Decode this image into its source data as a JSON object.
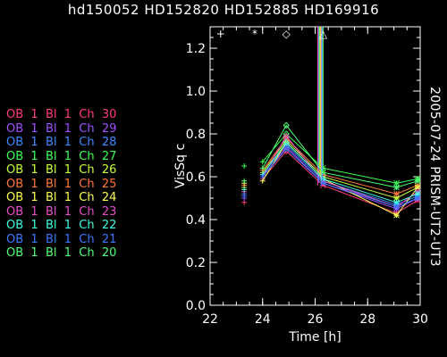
{
  "title": "hd150052 HD152820 HD152885 HD169916",
  "side_label": "2005-07-24 PRISM-UT2-UT3",
  "colors": {
    "background": "#000000",
    "axes": "#ffffff",
    "ch30": "#ff3c78",
    "ch29": "#a050ff",
    "ch28": "#3c8cff",
    "ch27": "#3cff50",
    "ch26": "#c8ff3c",
    "ch25": "#ff783c",
    "ch24": "#ffff50",
    "ch23": "#e650c8",
    "ch22": "#3cffdc",
    "ch21": "#3c78ff",
    "ch20": "#50ff78"
  },
  "chart_data": {
    "type": "line",
    "title": "hd150052 HD152820 HD152885 HD169916",
    "xlabel": "Time [h]",
    "ylabel": "VisSq c",
    "xlim": [
      22,
      30
    ],
    "ylim": [
      0,
      1.3
    ],
    "xticks": [
      22,
      24,
      26,
      28,
      30
    ],
    "yticks": [
      0.0,
      0.2,
      0.4,
      0.6,
      0.8,
      1.0,
      1.2
    ],
    "grid": false,
    "legend_position": "left, outside plot",
    "series": [
      {
        "name": "OB 1 Bl 1 Ch 30",
        "color": "#ff3c78",
        "x": [
          23.3,
          24.0,
          24.9,
          26.3,
          29.1,
          29.9
        ],
        "y": [
          0.48,
          0.59,
          0.72,
          0.56,
          0.43,
          0.49
        ]
      },
      {
        "name": "OB 1 Bl 1 Ch 29",
        "color": "#a050ff",
        "x": [
          23.3,
          24.0,
          24.9,
          26.3,
          29.1,
          29.9
        ],
        "y": [
          0.5,
          0.6,
          0.74,
          0.57,
          0.45,
          0.5
        ]
      },
      {
        "name": "OB 1 Bl 1 Ch 28",
        "color": "#3c8cff",
        "x": [
          23.3,
          24.0,
          24.9,
          26.3,
          29.1,
          29.9
        ],
        "y": [
          0.52,
          0.61,
          0.75,
          0.58,
          0.47,
          0.51
        ]
      },
      {
        "name": "OB 1 Bl 1 Ch 27",
        "color": "#3cff50",
        "x": [
          23.3,
          24.0,
          24.9,
          26.3,
          29.1,
          29.9
        ],
        "y": [
          0.65,
          0.67,
          0.8,
          0.64,
          0.57,
          0.59
        ]
      },
      {
        "name": "OB 1 Bl 1 Ch 26",
        "color": "#c8ff3c",
        "x": [
          23.3,
          24.0,
          24.9,
          26.3,
          29.1,
          29.9
        ],
        "y": [
          0.55,
          0.62,
          0.77,
          0.6,
          0.5,
          0.55
        ]
      },
      {
        "name": "OB 1 Bl 1 Ch 25",
        "color": "#ff783c",
        "x": [
          23.3,
          24.0,
          24.9,
          26.3,
          29.1,
          29.9
        ],
        "y": [
          0.56,
          0.63,
          0.78,
          0.61,
          0.52,
          0.56
        ]
      },
      {
        "name": "OB 1 Bl 1 Ch 24",
        "color": "#ffff50",
        "x": [
          23.3,
          24.0,
          24.9,
          26.3,
          29.1,
          29.9
        ],
        "y": [
          0.57,
          0.58,
          0.76,
          0.59,
          0.42,
          0.55
        ]
      },
      {
        "name": "OB 1 Bl 1 Ch 23",
        "color": "#e650c8",
        "x": [
          23.3,
          24.0,
          24.9,
          26.3,
          29.1,
          29.9
        ],
        "y": [
          0.53,
          0.6,
          0.79,
          0.58,
          0.46,
          0.53
        ]
      },
      {
        "name": "OB 1 Bl 1 Ch 22",
        "color": "#3cffdc",
        "x": [
          23.3,
          24.0,
          24.9,
          26.3,
          29.1,
          29.9
        ],
        "y": [
          0.54,
          0.61,
          0.76,
          0.59,
          0.48,
          0.52
        ]
      },
      {
        "name": "OB 1 Bl 1 Ch 21",
        "color": "#3c78ff",
        "x": [
          23.3,
          24.0,
          24.9,
          26.3,
          29.1,
          29.9
        ],
        "y": [
          0.51,
          0.6,
          0.73,
          0.57,
          0.46,
          0.5
        ]
      },
      {
        "name": "OB 1 Bl 1 Ch 20",
        "color": "#50ff78",
        "x": [
          23.3,
          24.0,
          24.9,
          26.3,
          29.1,
          29.9
        ],
        "y": [
          0.58,
          0.64,
          0.84,
          0.62,
          0.55,
          0.58
        ]
      }
    ],
    "calibrator_markers": [
      {
        "symbol": "+",
        "x": 22.4,
        "y": 1.27
      },
      {
        "symbol": "*",
        "x": 23.7,
        "y": 1.27
      },
      {
        "symbol": "◇",
        "x": 24.9,
        "y": 1.27
      },
      {
        "symbol": "△",
        "x": 26.3,
        "y": 1.27
      }
    ],
    "spike_x": 26.2
  }
}
